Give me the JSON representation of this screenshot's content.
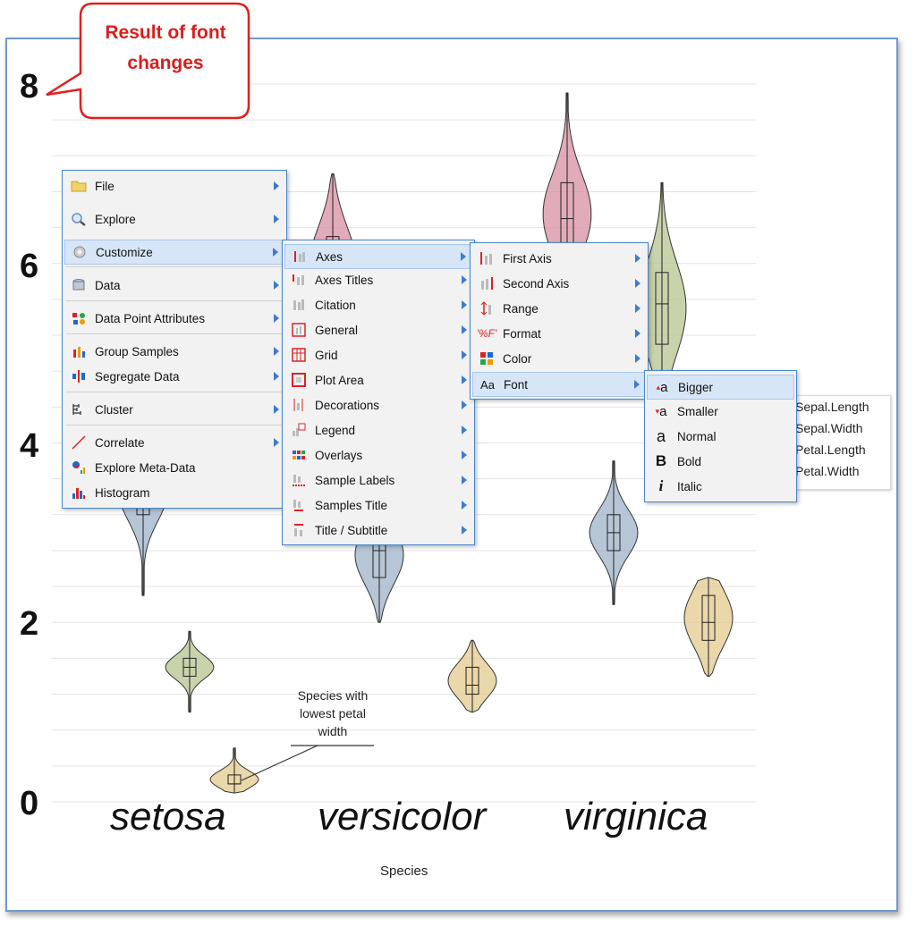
{
  "callout": {
    "text_line1": "Result of font",
    "text_line2": "changes"
  },
  "chart_data": {
    "type": "violin",
    "categories": [
      "setosa",
      "versicolor",
      "virginica"
    ],
    "series": [
      {
        "name": "Sepal.Length",
        "color": "#d88fa3",
        "stats": [
          [
            4.3,
            4.8,
            5.0,
            5.2,
            5.8
          ],
          [
            4.9,
            5.6,
            5.9,
            6.3,
            7.0
          ],
          [
            4.9,
            6.2,
            6.5,
            6.9,
            7.9
          ]
        ]
      },
      {
        "name": "Sepal.Width",
        "color": "#9db3c9",
        "stats": [
          [
            2.3,
            3.2,
            3.4,
            3.7,
            4.4
          ],
          [
            2.0,
            2.5,
            2.8,
            3.0,
            3.4
          ],
          [
            2.2,
            2.8,
            3.0,
            3.2,
            3.8
          ]
        ]
      },
      {
        "name": "Petal.Length",
        "color": "#b5c48f",
        "stats": [
          [
            1.0,
            1.4,
            1.5,
            1.6,
            1.9
          ],
          [
            3.0,
            4.0,
            4.35,
            4.6,
            5.1
          ],
          [
            4.5,
            5.1,
            5.55,
            5.9,
            6.9
          ]
        ]
      },
      {
        "name": "Petal.Width",
        "color": "#e3c98e",
        "stats": [
          [
            0.1,
            0.2,
            0.2,
            0.3,
            0.6
          ],
          [
            1.0,
            1.2,
            1.3,
            1.5,
            1.8
          ],
          [
            1.4,
            1.8,
            2.0,
            2.3,
            2.5
          ]
        ]
      }
    ],
    "y_ticks": [
      "0",
      "2",
      "4",
      "6",
      "8"
    ],
    "ylim": [
      0,
      8
    ],
    "xlabel": "Species",
    "grid": true,
    "legend_position": "right",
    "annotation": {
      "line1": "Species with",
      "line2": "lowest petal",
      "line3": "width"
    }
  },
  "menus": {
    "main": [
      {
        "label": "File",
        "icon": "folder-icon"
      },
      {
        "label": "Explore",
        "icon": "magnifier-icon"
      },
      {
        "label": "Customize",
        "icon": "gear-icon"
      },
      {
        "label": "Data",
        "icon": "database-icon"
      },
      {
        "label": "Data Point Attributes",
        "icon": "data-point-attributes-icon"
      },
      {
        "label": "Group Samples",
        "icon": "group-samples-icon"
      },
      {
        "label": "Segregate Data",
        "icon": "segregate-icon"
      },
      {
        "label": "Cluster",
        "icon": "cluster-icon"
      },
      {
        "label": "Correlate",
        "icon": "correlate-icon"
      },
      {
        "label": "Explore Meta-Data",
        "icon": "meta-data-icon"
      },
      {
        "label": "Histogram",
        "icon": "histogram-icon"
      }
    ],
    "customize": [
      {
        "label": "Axes"
      },
      {
        "label": "Axes Titles"
      },
      {
        "label": "Citation"
      },
      {
        "label": "General"
      },
      {
        "label": "Grid"
      },
      {
        "label": "Plot Area"
      },
      {
        "label": "Decorations"
      },
      {
        "label": "Legend"
      },
      {
        "label": "Overlays"
      },
      {
        "label": "Sample Labels"
      },
      {
        "label": "Samples Title"
      },
      {
        "label": "Title / Subtitle"
      }
    ],
    "axes": [
      {
        "label": "First Axis"
      },
      {
        "label": "Second Axis"
      },
      {
        "label": "Range"
      },
      {
        "label": "Format"
      },
      {
        "label": "Color"
      },
      {
        "label": "Font"
      }
    ],
    "font": [
      {
        "label": "Bigger"
      },
      {
        "label": "Smaller"
      },
      {
        "label": "Normal"
      },
      {
        "label": "Bold"
      },
      {
        "label": "Italic"
      }
    ]
  }
}
